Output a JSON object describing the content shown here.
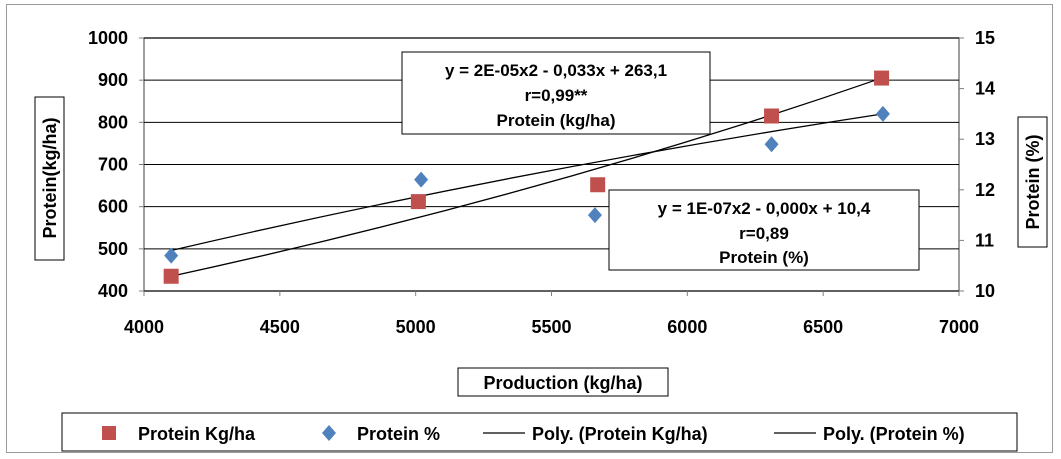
{
  "chart_data": {
    "type": "scatter",
    "xlabel": "Production (kg/ha)",
    "ylabel": "Protein(kg/ha)",
    "y2label": "Protein (%)",
    "xlim": [
      4000,
      7000
    ],
    "ylim": [
      400,
      1000
    ],
    "y2lim": [
      10,
      15
    ],
    "xticks": [
      "4000",
      "4500",
      "5000",
      "5500",
      "6000",
      "6500",
      "7000"
    ],
    "yticks": [
      "400",
      "500",
      "600",
      "700",
      "800",
      "900",
      "1000"
    ],
    "y2ticks": [
      "10",
      "11",
      "12",
      "13",
      "14",
      "15"
    ],
    "grid": "horizontal",
    "legend_position": "bottom",
    "series": [
      {
        "name": "Protein Kg/ha",
        "axis": "left",
        "marker": "square",
        "color": "#c0504d",
        "x": [
          4100,
          5010,
          5670,
          6310,
          6715
        ],
        "y": [
          435,
          612,
          652,
          815,
          905
        ]
      },
      {
        "name": "Protein %",
        "axis": "right",
        "marker": "diamond",
        "color": "#4f81bd",
        "x": [
          4100,
          5020,
          5660,
          6310,
          6720
        ],
        "y": [
          10.7,
          12.2,
          11.5,
          12.9,
          13.5
        ]
      }
    ],
    "trendlines": [
      {
        "name": "Poly. (Protein Kg/ha)",
        "axis": "left",
        "color": "#000000",
        "x": [
          4100,
          6715
        ],
        "y": [
          435,
          905
        ]
      },
      {
        "name": "Poly. (Protein %)",
        "axis": "right",
        "color": "#000000",
        "x": [
          4100,
          6720
        ],
        "y": [
          10.8,
          13.5
        ]
      }
    ],
    "annotations": [
      {
        "lines": [
          "y = 2E-05x2 - 0,033x + 263,1",
          "r=0,99**",
          "Protein (kg/ha)"
        ]
      },
      {
        "lines": [
          "y = 1E-07x2 - 0,000x + 10,4",
          "r=0,89",
          "Protein (%)"
        ]
      }
    ]
  }
}
